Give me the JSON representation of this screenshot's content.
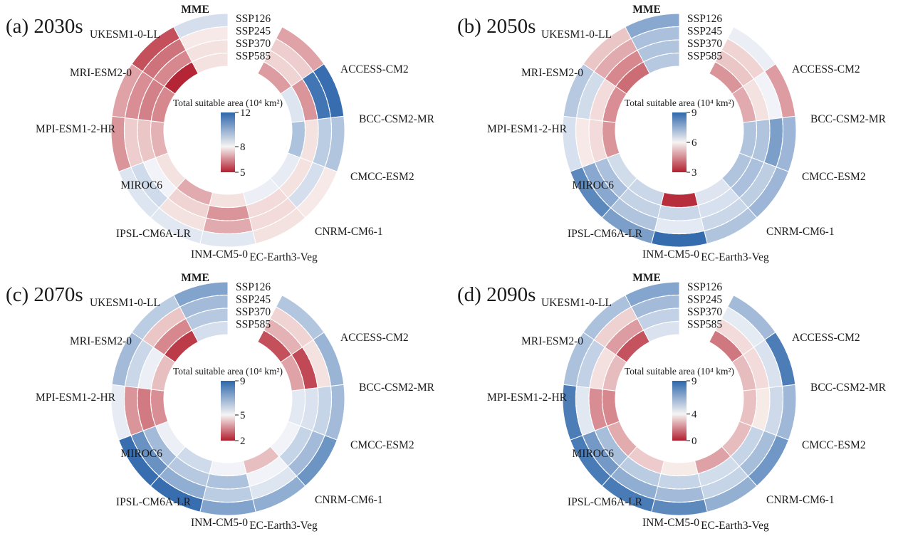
{
  "figure": {
    "type": "multi-panel circular heatmaps",
    "description": "Projected total suitable area by global climate model and SSP scenario for four future decades"
  },
  "chart_data": [
    {
      "type": "heatmap",
      "subtype": "circular",
      "panel_label": "(a) 2030s",
      "colorbar": {
        "title": "Total suitable area (10⁴ km²)",
        "ticks": [
          12,
          8,
          5
        ],
        "max": 12,
        "mid": 8,
        "min": 5
      },
      "rings": [
        "SSP126",
        "SSP245",
        "SSP370",
        "SSP585"
      ],
      "legend_position": "center",
      "colors": {
        "high": "#2e67ab",
        "mid": "#f5f2f1",
        "low": "#b21f2f"
      },
      "series": [
        {
          "name": "MME",
          "values": [
            8.6,
            7.9,
            7.8,
            7.8
          ]
        },
        {
          "name": "ACCESS-CM2",
          "values": [
            6.9,
            7.5,
            7.6,
            6.8
          ]
        },
        {
          "name": "BCC-CSM2-MR",
          "values": [
            11.8,
            11.6,
            6.7,
            8.4
          ]
        },
        {
          "name": "CMCC-ESM2",
          "values": [
            9.3,
            9.1,
            7.8,
            9.4
          ]
        },
        {
          "name": "CNRM-CM6-1",
          "values": [
            7.9,
            8.6,
            7.8,
            8.2
          ]
        },
        {
          "name": "EC-Earth3-Veg",
          "values": [
            7.8,
            7.7,
            7.7,
            8.1
          ]
        },
        {
          "name": "INM-CM5-0",
          "values": [
            8.3,
            7.0,
            6.7,
            7.8
          ]
        },
        {
          "name": "IPSL-CM6A-LR",
          "values": [
            8.3,
            7.8,
            7.6,
            7.0
          ]
        },
        {
          "name": "MIROC6",
          "values": [
            8.4,
            8.7,
            8.0,
            7.8
          ]
        },
        {
          "name": "MPI-ESM1-2-HR",
          "values": [
            6.7,
            7.5,
            7.4,
            7.1
          ]
        },
        {
          "name": "MRI-ESM2-0",
          "values": [
            6.9,
            6.6,
            6.4,
            6.5
          ]
        },
        {
          "name": "UKESM1-0-LL",
          "values": [
            5.7,
            6.2,
            6.5,
            5.1
          ]
        }
      ]
    },
    {
      "type": "heatmap",
      "subtype": "circular",
      "panel_label": "(b) 2050s",
      "colorbar": {
        "title": "Total suitable area (10⁴ km²)",
        "ticks": [
          9,
          6,
          3
        ],
        "max": 9,
        "mid": 6,
        "min": 3
      },
      "rings": [
        "SSP126",
        "SSP245",
        "SSP370",
        "SSP585"
      ],
      "legend_position": "center",
      "colors": {
        "high": "#2e67ab",
        "mid": "#f5f2f1",
        "low": "#b21f2f"
      },
      "series": [
        {
          "name": "MME",
          "values": [
            7.6,
            7.1,
            7.0,
            6.9
          ]
        },
        {
          "name": "ACCESS-CM2",
          "values": [
            6.1,
            5.6,
            5.4,
            4.7
          ]
        },
        {
          "name": "BCC-CSM2-MR",
          "values": [
            4.8,
            6.0,
            5.8,
            5.0
          ]
        },
        {
          "name": "CMCC-ESM2",
          "values": [
            7.3,
            7.8,
            7.0,
            7.0
          ]
        },
        {
          "name": "CNRM-CM6-1",
          "values": [
            7.3,
            6.8,
            7.1,
            7.0
          ]
        },
        {
          "name": "EC-Earth3-Veg",
          "values": [
            7.0,
            6.6,
            6.4,
            6.3
          ]
        },
        {
          "name": "INM-CM5-0",
          "values": [
            8.9,
            6.2,
            6.6,
            3.2
          ]
        },
        {
          "name": "IPSL-CM6A-LR",
          "values": [
            7.8,
            7.0,
            6.7,
            6.6
          ]
        },
        {
          "name": "MIROC6",
          "values": [
            8.3,
            7.6,
            7.1,
            6.5
          ]
        },
        {
          "name": "MPI-ESM1-2-HR",
          "values": [
            6.4,
            5.9,
            5.7,
            4.7
          ]
        },
        {
          "name": "MRI-ESM2-0",
          "values": [
            6.9,
            6.5,
            5.7,
            4.6
          ]
        },
        {
          "name": "UKESM1-0-LL",
          "values": [
            5.4,
            5.0,
            4.5,
            4.1
          ]
        }
      ]
    },
    {
      "type": "heatmap",
      "subtype": "circular",
      "panel_label": "(c) 2070s",
      "colorbar": {
        "title": "Total suitable area (10⁴ km²)",
        "ticks": [
          9,
          5,
          2
        ],
        "max": 9,
        "mid": 5,
        "min": 2
      },
      "rings": [
        "SSP126",
        "SSP245",
        "SSP370",
        "SSP585"
      ],
      "legend_position": "center",
      "colors": {
        "high": "#2e67ab",
        "mid": "#f5f2f1",
        "low": "#b21f2f"
      },
      "series": [
        {
          "name": "MME",
          "values": [
            7.3,
            6.6,
            6.2,
            5.6
          ]
        },
        {
          "name": "ACCESS-CM2",
          "values": [
            6.3,
            4.6,
            4.1,
            2.7
          ]
        },
        {
          "name": "BCC-CSM2-MR",
          "values": [
            6.8,
            4.8,
            2.6,
            3.9
          ]
        },
        {
          "name": "CMCC-ESM2",
          "values": [
            6.6,
            5.9,
            5.5,
            5.3
          ]
        },
        {
          "name": "CNRM-CM6-1",
          "values": [
            7.7,
            6.6,
            5.9,
            5.0
          ]
        },
        {
          "name": "EC-Earth3-Veg",
          "values": [
            7.0,
            5.4,
            5.0,
            4.3
          ]
        },
        {
          "name": "INM-CM5-0",
          "values": [
            7.3,
            6.1,
            6.4,
            5.0
          ]
        },
        {
          "name": "IPSL-CM6A-LR",
          "values": [
            8.8,
            7.0,
            6.2,
            5.7
          ]
        },
        {
          "name": "MIROC6",
          "values": [
            8.8,
            7.8,
            6.6,
            5.1
          ]
        },
        {
          "name": "MPI-ESM1-2-HR",
          "values": [
            5.2,
            3.7,
            3.3,
            3.6
          ]
        },
        {
          "name": "MRI-ESM2-0",
          "values": [
            6.6,
            5.8,
            5.1,
            4.3
          ]
        },
        {
          "name": "UKESM1-0-LL",
          "values": [
            6.1,
            4.4,
            3.5,
            2.4
          ]
        }
      ]
    },
    {
      "type": "heatmap",
      "subtype": "circular",
      "panel_label": "(d) 2090s",
      "colorbar": {
        "title": "Total suitable area (10⁴ km²)",
        "ticks": [
          9,
          4,
          0
        ],
        "max": 9,
        "mid": 4,
        "min": 0
      },
      "rings": [
        "SSP126",
        "SSP245",
        "SSP370",
        "SSP585"
      ],
      "legend_position": "center",
      "colors": {
        "high": "#2e67ab",
        "mid": "#f5f2f1",
        "low": "#b21f2f"
      },
      "series": [
        {
          "name": "MME",
          "values": [
            6.8,
            6.0,
            5.2,
            4.6
          ]
        },
        {
          "name": "ACCESS-CM2",
          "values": [
            6.0,
            4.3,
            3.6,
            1.7
          ]
        },
        {
          "name": "BCC-CSM2-MR",
          "values": [
            8.2,
            4.6,
            3.6,
            3.0
          ]
        },
        {
          "name": "CMCC-ESM2",
          "values": [
            6.1,
            4.9,
            3.9,
            3.1
          ]
        },
        {
          "name": "CNRM-CM6-1",
          "values": [
            7.3,
            5.9,
            5.1,
            3.0
          ]
        },
        {
          "name": "EC-Earth3-Veg",
          "values": [
            6.4,
            5.1,
            4.8,
            2.5
          ]
        },
        {
          "name": "INM-CM5-0",
          "values": [
            7.8,
            6.0,
            5.1,
            3.9
          ]
        },
        {
          "name": "IPSL-CM6A-LR",
          "values": [
            8.3,
            6.5,
            5.4,
            3.3
          ]
        },
        {
          "name": "MIROC6",
          "values": [
            8.3,
            7.2,
            5.9,
            2.7
          ]
        },
        {
          "name": "MPI-ESM1-2-HR",
          "values": [
            8.2,
            4.4,
            2.1,
            2.0
          ]
        },
        {
          "name": "MRI-ESM2-0",
          "values": [
            5.8,
            5.2,
            3.7,
            3.0
          ]
        },
        {
          "name": "UKESM1-0-LL",
          "values": [
            5.8,
            3.4,
            2.4,
            1.0
          ]
        }
      ]
    }
  ]
}
